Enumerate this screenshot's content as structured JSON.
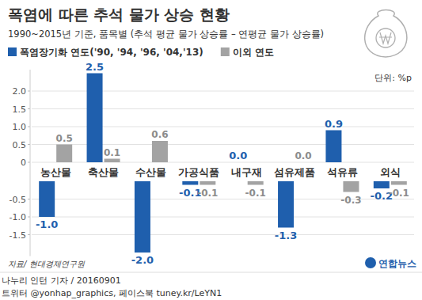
{
  "chart_data": {
    "type": "bar",
    "title": "폭염에 따른 추석 물가 상승 현황",
    "subtitle": "1990~2015년 기준, 품목별 (추석 평균 물가 상승률 – 연평균 물가 상승률)",
    "unit": "단위: %p",
    "categories": [
      "농산물",
      "축산물",
      "수산물",
      "가공식품",
      "내구재",
      "섬유제품",
      "석유류",
      "외식"
    ],
    "series": [
      {
        "name": "폭염장기화 연도('90, '94, '96, '04,'13)",
        "color": "#1f5fad",
        "values": [
          -1.0,
          2.5,
          -2.0,
          -0.1,
          0.0,
          -1.3,
          0.9,
          -0.2
        ],
        "value_labels": [
          "-1.0",
          "2.5",
          "-2.0",
          "-0.1",
          "0.0",
          "-1.3",
          "0.9",
          "-0.2"
        ]
      },
      {
        "name": "이외 연도",
        "color": "#a3a3a3",
        "values": [
          0.5,
          0.1,
          0.6,
          -0.1,
          -0.1,
          0.0,
          -0.3,
          -0.1
        ],
        "value_labels": [
          "0.5",
          "0.1",
          "0.6",
          "-0.1",
          "-0.1",
          "0.0",
          "-0.3",
          "-0.1"
        ]
      }
    ],
    "ylim": [
      -2.1,
      2.6
    ],
    "yticks": [
      {
        "value": 2,
        "label": "2.0"
      },
      1.5,
      {
        "value": 1,
        "label": "1.0"
      },
      0.5,
      0,
      -0.5,
      {
        "value": -1,
        "label": "-1.0"
      },
      -1.5
    ],
    "grid": true,
    "legend": "top",
    "data_labels": true,
    "source": "자료/ 현대경제연구원",
    "credits": [
      "나누리 인턴 기자 / 20160901",
      "트위터 @yonhap_graphics, 페이스북 tuney.kr/LeYN1"
    ],
    "logo": "연합뉴스"
  }
}
